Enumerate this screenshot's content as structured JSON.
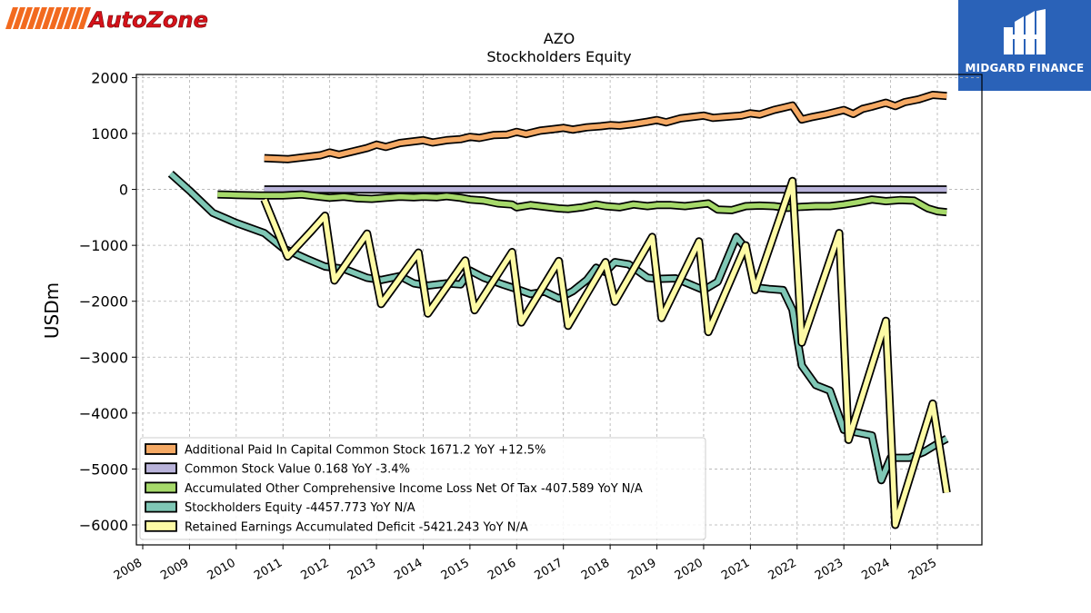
{
  "brand": {
    "name": "AutoZone",
    "stripe_color": "#f26a1f",
    "text_color": "#d5121a"
  },
  "partner": {
    "name": "MIDGARD FINANCE",
    "background": "#2a62b8"
  },
  "chart_data": {
    "type": "line",
    "title": "AZO",
    "subtitle": "Stockholders  Equity",
    "ylabel": "USDm",
    "xlabel": "",
    "ylim": [
      -6500,
      2100
    ],
    "xlim": [
      2007.9,
      2026.0
    ],
    "yticks": [
      2000,
      1000,
      0,
      -1000,
      -2000,
      -3000,
      -4000,
      -5000,
      -6000
    ],
    "ytick_labels": [
      "2000",
      "1000",
      "0",
      "−1000",
      "−2000",
      "−3000",
      "−4000",
      "−5000",
      "−6000"
    ],
    "xticks": [
      2008,
      2009,
      2010,
      2011,
      2012,
      2013,
      2014,
      2015,
      2016,
      2017,
      2018,
      2019,
      2020,
      2021,
      2022,
      2023,
      2024,
      2025
    ],
    "xtick_labels": [
      "2008",
      "2009",
      "2010",
      "2011",
      "2012",
      "2013",
      "2014",
      "2015",
      "2016",
      "2017",
      "2018",
      "2019",
      "2020",
      "2021",
      "2022",
      "2023",
      "2024",
      "2025"
    ],
    "grid": true,
    "legend_position": "lower-left",
    "series": [
      {
        "name": "Additional Paid In Capital Common Stock  1671.2 YoY +12.5%",
        "color": "#f5a964",
        "points": [
          [
            2010.6,
            560
          ],
          [
            2011.1,
            540
          ],
          [
            2011.5,
            580
          ],
          [
            2011.8,
            610
          ],
          [
            2012.0,
            660
          ],
          [
            2012.2,
            620
          ],
          [
            2012.5,
            680
          ],
          [
            2012.8,
            740
          ],
          [
            2013.0,
            800
          ],
          [
            2013.2,
            760
          ],
          [
            2013.5,
            830
          ],
          [
            2013.8,
            860
          ],
          [
            2014.0,
            880
          ],
          [
            2014.2,
            840
          ],
          [
            2014.5,
            880
          ],
          [
            2014.8,
            900
          ],
          [
            2015.0,
            940
          ],
          [
            2015.2,
            920
          ],
          [
            2015.5,
            970
          ],
          [
            2015.8,
            980
          ],
          [
            2016.0,
            1030
          ],
          [
            2016.2,
            990
          ],
          [
            2016.5,
            1050
          ],
          [
            2016.8,
            1080
          ],
          [
            2017.0,
            1100
          ],
          [
            2017.2,
            1070
          ],
          [
            2017.5,
            1110
          ],
          [
            2017.8,
            1130
          ],
          [
            2018.0,
            1150
          ],
          [
            2018.2,
            1140
          ],
          [
            2018.5,
            1170
          ],
          [
            2018.8,
            1210
          ],
          [
            2019.0,
            1240
          ],
          [
            2019.2,
            1200
          ],
          [
            2019.5,
            1270
          ],
          [
            2019.8,
            1300
          ],
          [
            2020.0,
            1320
          ],
          [
            2020.2,
            1280
          ],
          [
            2020.5,
            1300
          ],
          [
            2020.8,
            1320
          ],
          [
            2021.0,
            1360
          ],
          [
            2021.2,
            1340
          ],
          [
            2021.5,
            1420
          ],
          [
            2021.7,
            1460
          ],
          [
            2021.9,
            1500
          ],
          [
            2022.1,
            1250
          ],
          [
            2022.3,
            1290
          ],
          [
            2022.6,
            1340
          ],
          [
            2022.8,
            1380
          ],
          [
            2023.0,
            1420
          ],
          [
            2023.2,
            1350
          ],
          [
            2023.4,
            1440
          ],
          [
            2023.6,
            1480
          ],
          [
            2023.9,
            1550
          ],
          [
            2024.1,
            1490
          ],
          [
            2024.3,
            1560
          ],
          [
            2024.6,
            1610
          ],
          [
            2024.9,
            1690
          ],
          [
            2025.2,
            1671
          ]
        ]
      },
      {
        "name": "Common Stock Value  0.168 YoY -3.4%",
        "color": "#b9b3da",
        "points": [
          [
            2010.6,
            0.2
          ],
          [
            2025.2,
            0.168
          ]
        ]
      },
      {
        "name": "Accumulated Other Comprehensive Income Loss Net Of Tax  -407.589 YoY N/A",
        "color": "#a6d96a",
        "points": [
          [
            2009.6,
            -90
          ],
          [
            2010.0,
            -100
          ],
          [
            2010.5,
            -110
          ],
          [
            2011.0,
            -110
          ],
          [
            2011.4,
            -90
          ],
          [
            2011.8,
            -130
          ],
          [
            2012.0,
            -150
          ],
          [
            2012.3,
            -130
          ],
          [
            2012.6,
            -160
          ],
          [
            2012.9,
            -170
          ],
          [
            2013.2,
            -150
          ],
          [
            2013.5,
            -130
          ],
          [
            2013.8,
            -140
          ],
          [
            2014.0,
            -130
          ],
          [
            2014.3,
            -140
          ],
          [
            2014.5,
            -120
          ],
          [
            2014.8,
            -150
          ],
          [
            2015.0,
            -180
          ],
          [
            2015.3,
            -200
          ],
          [
            2015.6,
            -250
          ],
          [
            2015.9,
            -270
          ],
          [
            2016.0,
            -320
          ],
          [
            2016.3,
            -280
          ],
          [
            2016.6,
            -310
          ],
          [
            2016.9,
            -340
          ],
          [
            2017.1,
            -350
          ],
          [
            2017.4,
            -320
          ],
          [
            2017.7,
            -270
          ],
          [
            2017.9,
            -300
          ],
          [
            2018.2,
            -320
          ],
          [
            2018.5,
            -270
          ],
          [
            2018.8,
            -300
          ],
          [
            2019.0,
            -280
          ],
          [
            2019.3,
            -280
          ],
          [
            2019.6,
            -300
          ],
          [
            2019.9,
            -270
          ],
          [
            2020.1,
            -250
          ],
          [
            2020.3,
            -360
          ],
          [
            2020.6,
            -370
          ],
          [
            2020.9,
            -300
          ],
          [
            2021.2,
            -290
          ],
          [
            2021.5,
            -300
          ],
          [
            2021.8,
            -330
          ],
          [
            2022.1,
            -310
          ],
          [
            2022.4,
            -300
          ],
          [
            2022.7,
            -300
          ],
          [
            2023.0,
            -270
          ],
          [
            2023.3,
            -230
          ],
          [
            2023.6,
            -180
          ],
          [
            2023.9,
            -210
          ],
          [
            2024.2,
            -190
          ],
          [
            2024.5,
            -200
          ],
          [
            2024.8,
            -340
          ],
          [
            2025.0,
            -390
          ],
          [
            2025.2,
            -408
          ]
        ]
      },
      {
        "name": "Stockholders Equity  -4457.773 YoY N/A",
        "color": "#7fc7b5",
        "points": [
          [
            2008.6,
            280
          ],
          [
            2009.0,
            -20
          ],
          [
            2009.5,
            -420
          ],
          [
            2010.0,
            -600
          ],
          [
            2010.6,
            -780
          ],
          [
            2011.0,
            -1050
          ],
          [
            2011.5,
            -1240
          ],
          [
            2011.9,
            -1380
          ],
          [
            2012.3,
            -1420
          ],
          [
            2012.8,
            -1580
          ],
          [
            2013.1,
            -1620
          ],
          [
            2013.5,
            -1550
          ],
          [
            2013.8,
            -1680
          ],
          [
            2014.1,
            -1720
          ],
          [
            2014.5,
            -1680
          ],
          [
            2014.8,
            -1700
          ],
          [
            2015.0,
            -1450
          ],
          [
            2015.3,
            -1580
          ],
          [
            2015.7,
            -1700
          ],
          [
            2016.0,
            -1780
          ],
          [
            2016.3,
            -1870
          ],
          [
            2016.6,
            -1830
          ],
          [
            2016.9,
            -1950
          ],
          [
            2017.2,
            -1820
          ],
          [
            2017.5,
            -1620
          ],
          [
            2017.7,
            -1400
          ],
          [
            2017.9,
            -1480
          ],
          [
            2018.1,
            -1300
          ],
          [
            2018.4,
            -1340
          ],
          [
            2018.8,
            -1580
          ],
          [
            2019.0,
            -1600
          ],
          [
            2019.4,
            -1590
          ],
          [
            2019.8,
            -1730
          ],
          [
            2020.0,
            -1800
          ],
          [
            2020.3,
            -1650
          ],
          [
            2020.7,
            -850
          ],
          [
            2020.9,
            -1050
          ],
          [
            2021.1,
            -1750
          ],
          [
            2021.4,
            -1780
          ],
          [
            2021.7,
            -1800
          ],
          [
            2021.9,
            -2150
          ],
          [
            2022.1,
            -3150
          ],
          [
            2022.4,
            -3500
          ],
          [
            2022.7,
            -3600
          ],
          [
            2023.0,
            -4300
          ],
          [
            2023.3,
            -4350
          ],
          [
            2023.6,
            -4400
          ],
          [
            2023.8,
            -5200
          ],
          [
            2024.0,
            -4800
          ],
          [
            2024.4,
            -4800
          ],
          [
            2024.7,
            -4700
          ],
          [
            2025.0,
            -4550
          ],
          [
            2025.2,
            -4458
          ]
        ]
      },
      {
        "name": "Retained Earnings Accumulated Deficit  -5421.243 YoY N/A",
        "color": "#fdfaa5",
        "points": [
          [
            2010.6,
            -180
          ],
          [
            2011.1,
            -1200
          ],
          [
            2011.6,
            -750
          ],
          [
            2011.9,
            -470
          ],
          [
            2012.1,
            -1630
          ],
          [
            2012.8,
            -790
          ],
          [
            2013.1,
            -2050
          ],
          [
            2013.9,
            -1130
          ],
          [
            2014.1,
            -2220
          ],
          [
            2014.9,
            -1270
          ],
          [
            2015.1,
            -2160
          ],
          [
            2015.9,
            -1120
          ],
          [
            2016.1,
            -2380
          ],
          [
            2016.9,
            -1280
          ],
          [
            2017.1,
            -2440
          ],
          [
            2017.9,
            -1300
          ],
          [
            2018.1,
            -2010
          ],
          [
            2018.9,
            -850
          ],
          [
            2019.1,
            -2300
          ],
          [
            2019.9,
            -930
          ],
          [
            2020.1,
            -2550
          ],
          [
            2020.9,
            -1000
          ],
          [
            2021.1,
            -1800
          ],
          [
            2021.9,
            150
          ],
          [
            2022.1,
            -2740
          ],
          [
            2022.9,
            -780
          ],
          [
            2023.1,
            -4480
          ],
          [
            2023.9,
            -2350
          ],
          [
            2024.1,
            -6000
          ],
          [
            2024.9,
            -3830
          ],
          [
            2025.2,
            -5421
          ]
        ]
      }
    ]
  }
}
